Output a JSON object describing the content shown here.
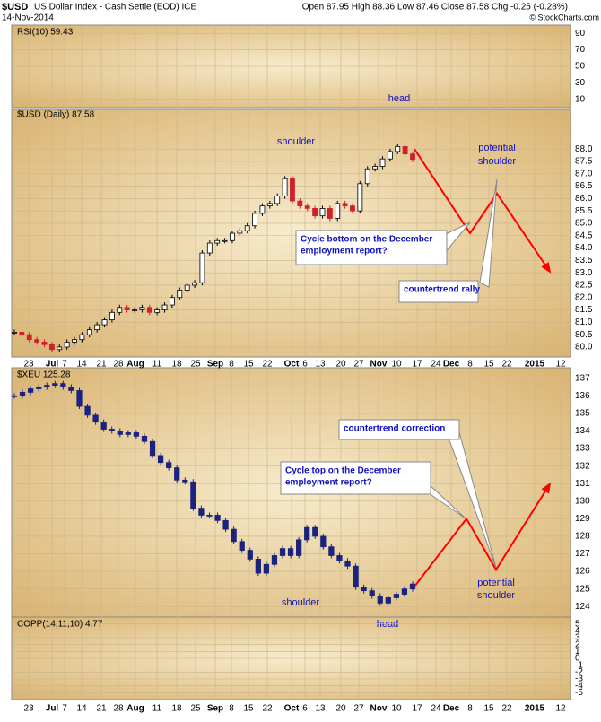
{
  "header": {
    "symbol": "$USD",
    "name": "US Dollar Index - Cash Settle (EOD) ICE",
    "date": "14-Nov-2014",
    "quote": "Open 87.95 High 88.36 Low 87.46 Close 87.58 Chg -0.25 (-0.28%)",
    "credit": "© StockCharts.com"
  },
  "chart_data": [
    {
      "type": "indicator",
      "label": "RSI(10) 59.43",
      "ylim": [
        0,
        100
      ],
      "yticks": [
        90,
        70,
        50,
        30,
        10
      ]
    },
    {
      "type": "candlestick",
      "label": "$USD (Daily) 87.58",
      "up_color": "#000000",
      "down_color": "#d0202a",
      "values": [
        80.6,
        80.5,
        80.3,
        80.2,
        80.1,
        79.9,
        80.0,
        80.2,
        80.3,
        80.5,
        80.7,
        80.9,
        81.1,
        81.4,
        81.6,
        81.5,
        81.5,
        81.6,
        81.4,
        81.5,
        81.7,
        82.0,
        82.3,
        82.5,
        82.6,
        83.8,
        84.2,
        84.3,
        84.3,
        84.6,
        84.7,
        84.9,
        85.4,
        85.7,
        85.8,
        86.1,
        86.8,
        85.9,
        85.7,
        85.6,
        85.3,
        85.6,
        85.2,
        85.8,
        85.7,
        85.5,
        86.6,
        87.2,
        87.3,
        87.6,
        87.9,
        88.1,
        87.8,
        87.58
      ],
      "projection": {
        "color": "#ff0000",
        "values": [
          88.0,
          84.6,
          86.2,
          83.1
        ]
      },
      "ylim": [
        79.6,
        89.6
      ],
      "yticks": [
        {
          "value": 80,
          "label": "80.0"
        },
        {
          "value": 80.5,
          "label": "80.5"
        },
        {
          "value": 81,
          "label": "81.0"
        },
        {
          "value": 81.5,
          "label": "81.5"
        },
        {
          "value": 82,
          "label": "82.0"
        },
        {
          "value": 82.5,
          "label": "82.5"
        },
        {
          "value": 83,
          "label": "83.0"
        },
        {
          "value": 83.5,
          "label": "83.5"
        },
        {
          "value": 84,
          "label": "84.0"
        },
        {
          "value": 84.5,
          "label": "84.5"
        },
        {
          "value": 85,
          "label": "85.0"
        },
        {
          "value": 85.5,
          "label": "85.5"
        },
        {
          "value": 86,
          "label": "86.0"
        },
        {
          "value": 86.5,
          "label": "86.5"
        },
        {
          "value": 87,
          "label": "87.0"
        },
        {
          "value": 87.5,
          "label": "87.5"
        },
        {
          "value": 88,
          "label": "88.0"
        }
      ],
      "annotations": {
        "shoulder": "shoulder",
        "head": "head",
        "potential": [
          "potential",
          "shoulder"
        ],
        "cycle": [
          "Cycle bottom on the December",
          "employment report?"
        ],
        "rally": "countertrend rally"
      }
    },
    {
      "type": "candlestick",
      "label": "$XEU 125.28",
      "up_color": "#1a237e",
      "down_color": "#1a237e",
      "values": [
        136.0,
        136.2,
        136.4,
        136.5,
        136.6,
        136.7,
        136.5,
        136.3,
        135.4,
        134.9,
        134.5,
        134.1,
        134.0,
        133.8,
        133.9,
        133.7,
        133.4,
        132.6,
        132.2,
        131.9,
        131.2,
        131.1,
        129.6,
        129.2,
        129.2,
        128.9,
        128.4,
        127.7,
        127.2,
        126.7,
        125.9,
        126.4,
        126.9,
        127.3,
        126.9,
        127.8,
        128.5,
        128.0,
        127.4,
        126.9,
        126.6,
        126.3,
        125.1,
        124.9,
        124.6,
        124.2,
        124.5,
        124.7,
        125.0,
        125.28
      ],
      "projection": {
        "color": "#ff0000",
        "values": [
          125.2,
          129.0,
          126.1,
          130.9
        ]
      },
      "ylim": [
        123.4,
        137.6
      ],
      "yticks": [
        137,
        136,
        135,
        134,
        133,
        132,
        131,
        130,
        129,
        128,
        127,
        126,
        125,
        124
      ],
      "annotations": {
        "shoulder": "shoulder",
        "head": "head",
        "potential": [
          "potential",
          "shoulder"
        ],
        "cycle": [
          "Cycle top on the December",
          "employment report?"
        ],
        "correction": "countertrend correction"
      }
    },
    {
      "type": "indicator",
      "label": "COPP(14,11,10) 4.77",
      "ylim": [
        -6,
        6
      ],
      "yticks": [
        5,
        4,
        3,
        2,
        1,
        0,
        -1,
        -2,
        -3,
        -4,
        -5
      ]
    }
  ],
  "x_labels": [
    "23",
    "Jul",
    "7",
    "14",
    "21",
    "28",
    "Aug",
    "11",
    "18",
    "25",
    "Sep",
    "8",
    "15",
    "22",
    "Oct",
    "6",
    "13",
    "20",
    "27",
    "Nov",
    "10",
    "17",
    "24",
    "Dec",
    "8",
    "15",
    "22",
    "2015",
    "12"
  ]
}
